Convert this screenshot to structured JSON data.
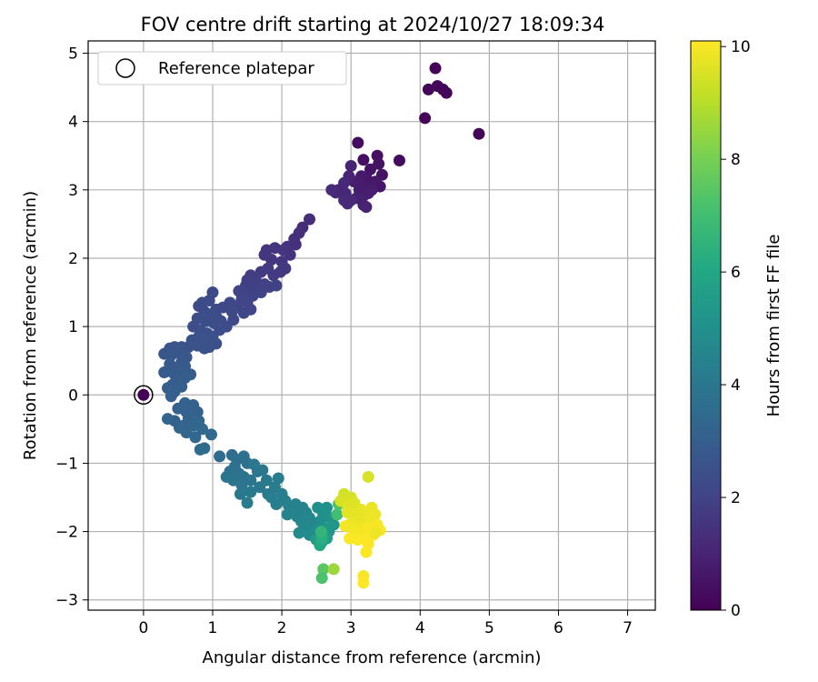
{
  "chart_data": {
    "type": "scatter",
    "title": "FOV centre drift starting at 2024/10/27 18:09:34",
    "xlabel": "Angular distance from reference (arcmin)",
    "ylabel": "Rotation from reference (arcmin)",
    "xlim": [
      -0.8,
      7.4
    ],
    "ylim": [
      -3.15,
      5.18
    ],
    "xticks": [
      0,
      1,
      2,
      3,
      4,
      5,
      6,
      7
    ],
    "yticks": [
      -3,
      -2,
      -1,
      0,
      1,
      2,
      3,
      4,
      5
    ],
    "grid": true,
    "legend": {
      "placement": "upper-left",
      "entries": [
        "Reference platepar"
      ]
    },
    "reference_point": {
      "x": 0,
      "y": 0,
      "label": "Reference platepar"
    },
    "colorbar": {
      "label": "Hours from first FF file",
      "colormap": "viridis",
      "range": [
        0,
        10.1
      ],
      "ticks": [
        0,
        2,
        4,
        6,
        8,
        10
      ]
    },
    "points": [
      {
        "x": 4.22,
        "y": 4.78,
        "h": 0.1
      },
      {
        "x": 4.12,
        "y": 4.47,
        "h": 0.1
      },
      {
        "x": 4.25,
        "y": 4.52,
        "h": 0.1
      },
      {
        "x": 4.33,
        "y": 4.47,
        "h": 0.1
      },
      {
        "x": 4.38,
        "y": 4.42,
        "h": 0.1
      },
      {
        "x": 4.07,
        "y": 4.05,
        "h": 0.15
      },
      {
        "x": 4.85,
        "y": 3.82,
        "h": 0.1
      },
      {
        "x": 3.7,
        "y": 3.43,
        "h": 0.3
      },
      {
        "x": 3.1,
        "y": 3.69,
        "h": 0.3
      },
      {
        "x": 3.18,
        "y": 3.44,
        "h": 0.4
      },
      {
        "x": 3.38,
        "y": 3.5,
        "h": 0.4
      },
      {
        "x": 3.45,
        "y": 3.22,
        "h": 0.5
      },
      {
        "x": 3.28,
        "y": 3.3,
        "h": 0.5
      },
      {
        "x": 3.22,
        "y": 3.18,
        "h": 0.6
      },
      {
        "x": 3.35,
        "y": 3.12,
        "h": 0.6
      },
      {
        "x": 3.42,
        "y": 3.05,
        "h": 0.6
      },
      {
        "x": 3.3,
        "y": 3.08,
        "h": 0.7
      },
      {
        "x": 3.15,
        "y": 3.2,
        "h": 0.7
      },
      {
        "x": 3.05,
        "y": 3.12,
        "h": 0.8
      },
      {
        "x": 3.12,
        "y": 3.0,
        "h": 0.8
      },
      {
        "x": 3.2,
        "y": 2.93,
        "h": 0.9
      },
      {
        "x": 3.08,
        "y": 2.88,
        "h": 0.9
      },
      {
        "x": 3.18,
        "y": 2.78,
        "h": 0.9
      },
      {
        "x": 3.22,
        "y": 2.75,
        "h": 1.0
      },
      {
        "x": 3.0,
        "y": 3.35,
        "h": 1.0
      },
      {
        "x": 2.97,
        "y": 3.2,
        "h": 1.0
      },
      {
        "x": 2.9,
        "y": 3.1,
        "h": 1.1
      },
      {
        "x": 2.82,
        "y": 3.0,
        "h": 1.1
      },
      {
        "x": 2.78,
        "y": 2.96,
        "h": 1.1
      },
      {
        "x": 2.92,
        "y": 2.95,
        "h": 1.1
      },
      {
        "x": 3.0,
        "y": 2.85,
        "h": 1.2
      },
      {
        "x": 2.95,
        "y": 2.8,
        "h": 1.2
      },
      {
        "x": 3.3,
        "y": 3.0,
        "h": 0.8
      },
      {
        "x": 3.4,
        "y": 3.38,
        "h": 0.5
      },
      {
        "x": 3.25,
        "y": 2.95,
        "h": 0.85
      },
      {
        "x": 2.9,
        "y": 2.85,
        "h": 1.2
      },
      {
        "x": 2.72,
        "y": 3.0,
        "h": 1.2
      },
      {
        "x": 3.15,
        "y": 3.05,
        "h": 0.75
      },
      {
        "x": 2.4,
        "y": 2.57,
        "h": 1.3
      },
      {
        "x": 2.3,
        "y": 2.45,
        "h": 1.3
      },
      {
        "x": 2.25,
        "y": 2.37,
        "h": 1.35
      },
      {
        "x": 2.18,
        "y": 2.28,
        "h": 1.4
      },
      {
        "x": 2.2,
        "y": 2.2,
        "h": 1.4
      },
      {
        "x": 2.08,
        "y": 2.17,
        "h": 1.45
      },
      {
        "x": 2.12,
        "y": 2.05,
        "h": 1.45
      },
      {
        "x": 2.02,
        "y": 2.12,
        "h": 1.5
      },
      {
        "x": 1.9,
        "y": 2.15,
        "h": 1.5
      },
      {
        "x": 1.78,
        "y": 2.12,
        "h": 1.55
      },
      {
        "x": 1.75,
        "y": 2.05,
        "h": 1.55
      },
      {
        "x": 1.85,
        "y": 1.98,
        "h": 1.6
      },
      {
        "x": 2.0,
        "y": 1.95,
        "h": 1.6
      },
      {
        "x": 2.05,
        "y": 1.85,
        "h": 1.65
      },
      {
        "x": 1.98,
        "y": 1.8,
        "h": 1.65
      },
      {
        "x": 1.88,
        "y": 1.75,
        "h": 1.7
      },
      {
        "x": 1.8,
        "y": 1.85,
        "h": 1.7
      },
      {
        "x": 1.7,
        "y": 1.8,
        "h": 1.75
      },
      {
        "x": 1.62,
        "y": 1.72,
        "h": 1.8
      },
      {
        "x": 1.55,
        "y": 1.75,
        "h": 1.8
      },
      {
        "x": 1.5,
        "y": 1.68,
        "h": 1.85
      },
      {
        "x": 1.48,
        "y": 1.6,
        "h": 1.85
      },
      {
        "x": 1.56,
        "y": 1.55,
        "h": 1.9
      },
      {
        "x": 1.65,
        "y": 1.6,
        "h": 1.9
      },
      {
        "x": 1.75,
        "y": 1.62,
        "h": 1.95
      },
      {
        "x": 1.82,
        "y": 1.58,
        "h": 1.95
      },
      {
        "x": 1.92,
        "y": 1.6,
        "h": 1.95
      },
      {
        "x": 1.7,
        "y": 1.5,
        "h": 2.0
      },
      {
        "x": 1.58,
        "y": 1.45,
        "h": 2.0
      },
      {
        "x": 1.45,
        "y": 1.48,
        "h": 2.0
      },
      {
        "x": 1.38,
        "y": 1.52,
        "h": 2.05
      },
      {
        "x": 1.42,
        "y": 1.4,
        "h": 2.05
      },
      {
        "x": 1.5,
        "y": 1.35,
        "h": 2.1
      },
      {
        "x": 1.55,
        "y": 1.25,
        "h": 2.1
      },
      {
        "x": 1.45,
        "y": 1.2,
        "h": 2.15
      },
      {
        "x": 1.35,
        "y": 1.3,
        "h": 2.15
      },
      {
        "x": 1.28,
        "y": 1.22,
        "h": 2.2
      },
      {
        "x": 1.25,
        "y": 1.35,
        "h": 2.2
      },
      {
        "x": 1.15,
        "y": 1.28,
        "h": 2.2
      },
      {
        "x": 1.05,
        "y": 1.25,
        "h": 2.25
      },
      {
        "x": 1.0,
        "y": 1.5,
        "h": 2.25
      },
      {
        "x": 0.95,
        "y": 1.38,
        "h": 2.3
      },
      {
        "x": 0.85,
        "y": 1.35,
        "h": 2.3
      },
      {
        "x": 0.8,
        "y": 1.3,
        "h": 2.3
      },
      {
        "x": 0.88,
        "y": 1.22,
        "h": 2.3
      },
      {
        "x": 0.95,
        "y": 1.18,
        "h": 2.35
      },
      {
        "x": 1.05,
        "y": 1.15,
        "h": 2.35
      },
      {
        "x": 1.12,
        "y": 1.08,
        "h": 2.35
      },
      {
        "x": 1.02,
        "y": 1.05,
        "h": 2.4
      },
      {
        "x": 0.9,
        "y": 1.08,
        "h": 2.4
      },
      {
        "x": 0.78,
        "y": 1.12,
        "h": 2.4
      },
      {
        "x": 0.72,
        "y": 1.0,
        "h": 2.45
      },
      {
        "x": 0.82,
        "y": 0.95,
        "h": 2.45
      },
      {
        "x": 0.92,
        "y": 0.9,
        "h": 2.45
      },
      {
        "x": 1.0,
        "y": 0.85,
        "h": 2.5
      },
      {
        "x": 0.8,
        "y": 0.85,
        "h": 2.5
      },
      {
        "x": 0.7,
        "y": 0.8,
        "h": 2.5
      },
      {
        "x": 0.78,
        "y": 0.72,
        "h": 2.55
      },
      {
        "x": 0.88,
        "y": 0.68,
        "h": 2.55
      },
      {
        "x": 0.9,
        "y": 0.78,
        "h": 2.55
      },
      {
        "x": 1.3,
        "y": 1.1,
        "h": 2.2
      },
      {
        "x": 1.2,
        "y": 1.0,
        "h": 2.3
      },
      {
        "x": 1.1,
        "y": 0.95,
        "h": 2.35
      },
      {
        "x": 1.05,
        "y": 0.75,
        "h": 2.45
      },
      {
        "x": 0.95,
        "y": 0.7,
        "h": 2.5
      },
      {
        "x": 0.65,
        "y": 0.7,
        "h": 2.6
      },
      {
        "x": 0.55,
        "y": 0.7,
        "h": 2.6
      },
      {
        "x": 0.45,
        "y": 0.7,
        "h": 2.65
      },
      {
        "x": 0.38,
        "y": 0.68,
        "h": 2.65
      },
      {
        "x": 0.3,
        "y": 0.6,
        "h": 2.7
      },
      {
        "x": 0.4,
        "y": 0.58,
        "h": 2.7
      },
      {
        "x": 0.5,
        "y": 0.62,
        "h": 2.7
      },
      {
        "x": 0.62,
        "y": 0.55,
        "h": 2.75
      },
      {
        "x": 0.55,
        "y": 0.48,
        "h": 2.75
      },
      {
        "x": 0.6,
        "y": 0.42,
        "h": 2.8
      },
      {
        "x": 0.48,
        "y": 0.4,
        "h": 2.8
      },
      {
        "x": 0.38,
        "y": 0.45,
        "h": 2.8
      },
      {
        "x": 0.35,
        "y": 0.35,
        "h": 2.85
      },
      {
        "x": 0.3,
        "y": 0.33,
        "h": 2.85
      },
      {
        "x": 0.45,
        "y": 0.3,
        "h": 2.9
      },
      {
        "x": 0.55,
        "y": 0.35,
        "h": 2.9
      },
      {
        "x": 0.68,
        "y": 0.3,
        "h": 2.9
      },
      {
        "x": 0.5,
        "y": 0.2,
        "h": 2.95
      },
      {
        "x": 0.42,
        "y": 0.15,
        "h": 2.95
      },
      {
        "x": 0.35,
        "y": 0.1,
        "h": 3.0
      },
      {
        "x": 0.55,
        "y": 0.12,
        "h": 3.0
      },
      {
        "x": 0.6,
        "y": 0.25,
        "h": 3.0
      },
      {
        "x": 0.45,
        "y": 0.05,
        "h": 3.05
      },
      {
        "x": 0.4,
        "y": -0.02,
        "h": 3.05
      },
      {
        "x": 0.6,
        "y": -0.12,
        "h": 3.1
      },
      {
        "x": 0.5,
        "y": -0.2,
        "h": 3.1
      },
      {
        "x": 0.62,
        "y": -0.25,
        "h": 3.15
      },
      {
        "x": 0.72,
        "y": -0.15,
        "h": 3.15
      },
      {
        "x": 0.78,
        "y": -0.25,
        "h": 3.2
      },
      {
        "x": 0.65,
        "y": -0.35,
        "h": 3.2
      },
      {
        "x": 0.7,
        "y": -0.42,
        "h": 3.25
      },
      {
        "x": 0.58,
        "y": -0.45,
        "h": 3.25
      },
      {
        "x": 0.52,
        "y": -0.48,
        "h": 3.3
      },
      {
        "x": 0.62,
        "y": -0.55,
        "h": 3.3
      },
      {
        "x": 0.72,
        "y": -0.45,
        "h": 3.35
      },
      {
        "x": 0.8,
        "y": -0.38,
        "h": 3.35
      },
      {
        "x": 0.85,
        "y": -0.5,
        "h": 3.4
      },
      {
        "x": 0.75,
        "y": -0.62,
        "h": 3.4
      },
      {
        "x": 0.98,
        "y": -0.58,
        "h": 3.45
      },
      {
        "x": 0.82,
        "y": -0.8,
        "h": 3.5
      },
      {
        "x": 0.88,
        "y": -0.78,
        "h": 3.5
      },
      {
        "x": 0.45,
        "y": -0.38,
        "h": 3.2
      },
      {
        "x": 0.35,
        "y": -0.35,
        "h": 3.25
      },
      {
        "x": 1.1,
        "y": -0.9,
        "h": 3.55
      },
      {
        "x": 1.28,
        "y": -0.88,
        "h": 3.6
      },
      {
        "x": 1.35,
        "y": -0.95,
        "h": 3.65
      },
      {
        "x": 1.45,
        "y": -0.9,
        "h": 3.7
      },
      {
        "x": 1.5,
        "y": -1.0,
        "h": 3.7
      },
      {
        "x": 1.32,
        "y": -1.05,
        "h": 3.75
      },
      {
        "x": 1.25,
        "y": -1.12,
        "h": 3.8
      },
      {
        "x": 1.38,
        "y": -1.15,
        "h": 3.8
      },
      {
        "x": 1.45,
        "y": -1.2,
        "h": 3.85
      },
      {
        "x": 1.3,
        "y": -1.25,
        "h": 3.85
      },
      {
        "x": 1.2,
        "y": -1.2,
        "h": 3.9
      },
      {
        "x": 1.42,
        "y": -1.32,
        "h": 3.9
      },
      {
        "x": 1.55,
        "y": -1.25,
        "h": 3.95
      },
      {
        "x": 1.65,
        "y": -1.12,
        "h": 3.95
      },
      {
        "x": 1.6,
        "y": -1.02,
        "h": 4.0
      },
      {
        "x": 1.72,
        "y": -1.1,
        "h": 4.0
      },
      {
        "x": 1.78,
        "y": -1.25,
        "h": 4.05
      },
      {
        "x": 1.68,
        "y": -1.35,
        "h": 4.05
      },
      {
        "x": 1.55,
        "y": -1.42,
        "h": 4.1
      },
      {
        "x": 1.4,
        "y": -1.45,
        "h": 4.1
      },
      {
        "x": 1.5,
        "y": -1.58,
        "h": 4.15
      },
      {
        "x": 1.8,
        "y": -1.45,
        "h": 4.15
      },
      {
        "x": 1.9,
        "y": -1.35,
        "h": 4.2
      },
      {
        "x": 1.95,
        "y": -1.22,
        "h": 4.2
      },
      {
        "x": 1.85,
        "y": -1.5,
        "h": 4.25
      },
      {
        "x": 2.0,
        "y": -1.45,
        "h": 4.25
      },
      {
        "x": 2.05,
        "y": -1.55,
        "h": 4.3
      },
      {
        "x": 1.92,
        "y": -1.6,
        "h": 4.3
      },
      {
        "x": 2.1,
        "y": -1.62,
        "h": 4.35
      },
      {
        "x": 2.15,
        "y": -1.7,
        "h": 4.4
      },
      {
        "x": 2.2,
        "y": -1.6,
        "h": 4.4
      },
      {
        "x": 2.08,
        "y": -1.75,
        "h": 4.45
      },
      {
        "x": 2.22,
        "y": -1.78,
        "h": 4.45
      },
      {
        "x": 2.3,
        "y": -1.65,
        "h": 4.5
      },
      {
        "x": 2.35,
        "y": -1.72,
        "h": 4.55
      },
      {
        "x": 2.28,
        "y": -1.85,
        "h": 4.6
      },
      {
        "x": 2.4,
        "y": -1.8,
        "h": 4.6
      },
      {
        "x": 2.45,
        "y": -1.92,
        "h": 4.65
      },
      {
        "x": 2.32,
        "y": -1.95,
        "h": 4.7
      },
      {
        "x": 2.25,
        "y": -2.02,
        "h": 4.75
      },
      {
        "x": 2.4,
        "y": -2.05,
        "h": 4.8
      },
      {
        "x": 2.5,
        "y": -1.98,
        "h": 4.85
      },
      {
        "x": 2.55,
        "y": -1.85,
        "h": 4.9
      },
      {
        "x": 2.6,
        "y": -1.75,
        "h": 4.95
      },
      {
        "x": 2.52,
        "y": -1.65,
        "h": 5.0
      },
      {
        "x": 2.65,
        "y": -1.65,
        "h": 5.05
      },
      {
        "x": 2.7,
        "y": -1.8,
        "h": 5.1
      },
      {
        "x": 2.62,
        "y": -1.95,
        "h": 5.15
      },
      {
        "x": 2.55,
        "y": -2.05,
        "h": 5.2
      },
      {
        "x": 2.68,
        "y": -2.0,
        "h": 5.25
      },
      {
        "x": 2.75,
        "y": -1.9,
        "h": 5.3
      },
      {
        "x": 2.58,
        "y": -2.15,
        "h": 5.4
      },
      {
        "x": 2.5,
        "y": -2.12,
        "h": 5.5
      },
      {
        "x": 2.65,
        "y": -2.1,
        "h": 5.6
      },
      {
        "x": 2.55,
        "y": -2.2,
        "h": 6.0
      },
      {
        "x": 2.58,
        "y": -2.1,
        "h": 6.3
      },
      {
        "x": 2.57,
        "y": -2.0,
        "h": 6.6
      },
      {
        "x": 2.8,
        "y": -1.75,
        "h": 7.0
      },
      {
        "x": 2.82,
        "y": -1.6,
        "h": 7.3
      },
      {
        "x": 2.6,
        "y": -2.55,
        "h": 7.5
      },
      {
        "x": 2.58,
        "y": -2.68,
        "h": 7.2
      },
      {
        "x": 2.75,
        "y": -2.55,
        "h": 8.6
      },
      {
        "x": 2.9,
        "y": -1.45,
        "h": 9.4
      },
      {
        "x": 3.0,
        "y": -1.5,
        "h": 9.5
      },
      {
        "x": 2.85,
        "y": -1.55,
        "h": 9.5
      },
      {
        "x": 2.95,
        "y": -1.62,
        "h": 9.6
      },
      {
        "x": 3.05,
        "y": -1.58,
        "h": 9.6
      },
      {
        "x": 3.25,
        "y": -1.2,
        "h": 9.5
      },
      {
        "x": 2.95,
        "y": -1.72,
        "h": 9.7
      },
      {
        "x": 3.05,
        "y": -1.75,
        "h": 9.7
      },
      {
        "x": 3.15,
        "y": -1.68,
        "h": 9.75
      },
      {
        "x": 3.22,
        "y": -1.72,
        "h": 9.8
      },
      {
        "x": 3.3,
        "y": -1.65,
        "h": 9.8
      },
      {
        "x": 3.35,
        "y": -1.75,
        "h": 9.85
      },
      {
        "x": 3.28,
        "y": -1.82,
        "h": 9.85
      },
      {
        "x": 3.18,
        "y": -1.85,
        "h": 9.9
      },
      {
        "x": 3.1,
        "y": -1.9,
        "h": 9.9
      },
      {
        "x": 3.0,
        "y": -1.88,
        "h": 9.9
      },
      {
        "x": 2.92,
        "y": -1.92,
        "h": 9.95
      },
      {
        "x": 3.05,
        "y": -2.0,
        "h": 9.95
      },
      {
        "x": 3.15,
        "y": -2.02,
        "h": 9.95
      },
      {
        "x": 3.25,
        "y": -1.95,
        "h": 10.0
      },
      {
        "x": 3.38,
        "y": -1.9,
        "h": 10.0
      },
      {
        "x": 3.42,
        "y": -1.98,
        "h": 10.0
      },
      {
        "x": 3.32,
        "y": -2.05,
        "h": 10.05
      },
      {
        "x": 3.2,
        "y": -2.1,
        "h": 10.05
      },
      {
        "x": 3.1,
        "y": -2.12,
        "h": 10.05
      },
      {
        "x": 2.98,
        "y": -2.1,
        "h": 10.05
      },
      {
        "x": 3.25,
        "y": -2.18,
        "h": 10.1
      },
      {
        "x": 3.22,
        "y": -2.3,
        "h": 10.1
      },
      {
        "x": 3.18,
        "y": -2.65,
        "h": 10.0
      },
      {
        "x": 3.18,
        "y": -2.75,
        "h": 10.1
      },
      {
        "x": 3.35,
        "y": -2.02,
        "h": 9.85
      },
      {
        "x": 3.12,
        "y": -1.78,
        "h": 9.75
      }
    ]
  }
}
